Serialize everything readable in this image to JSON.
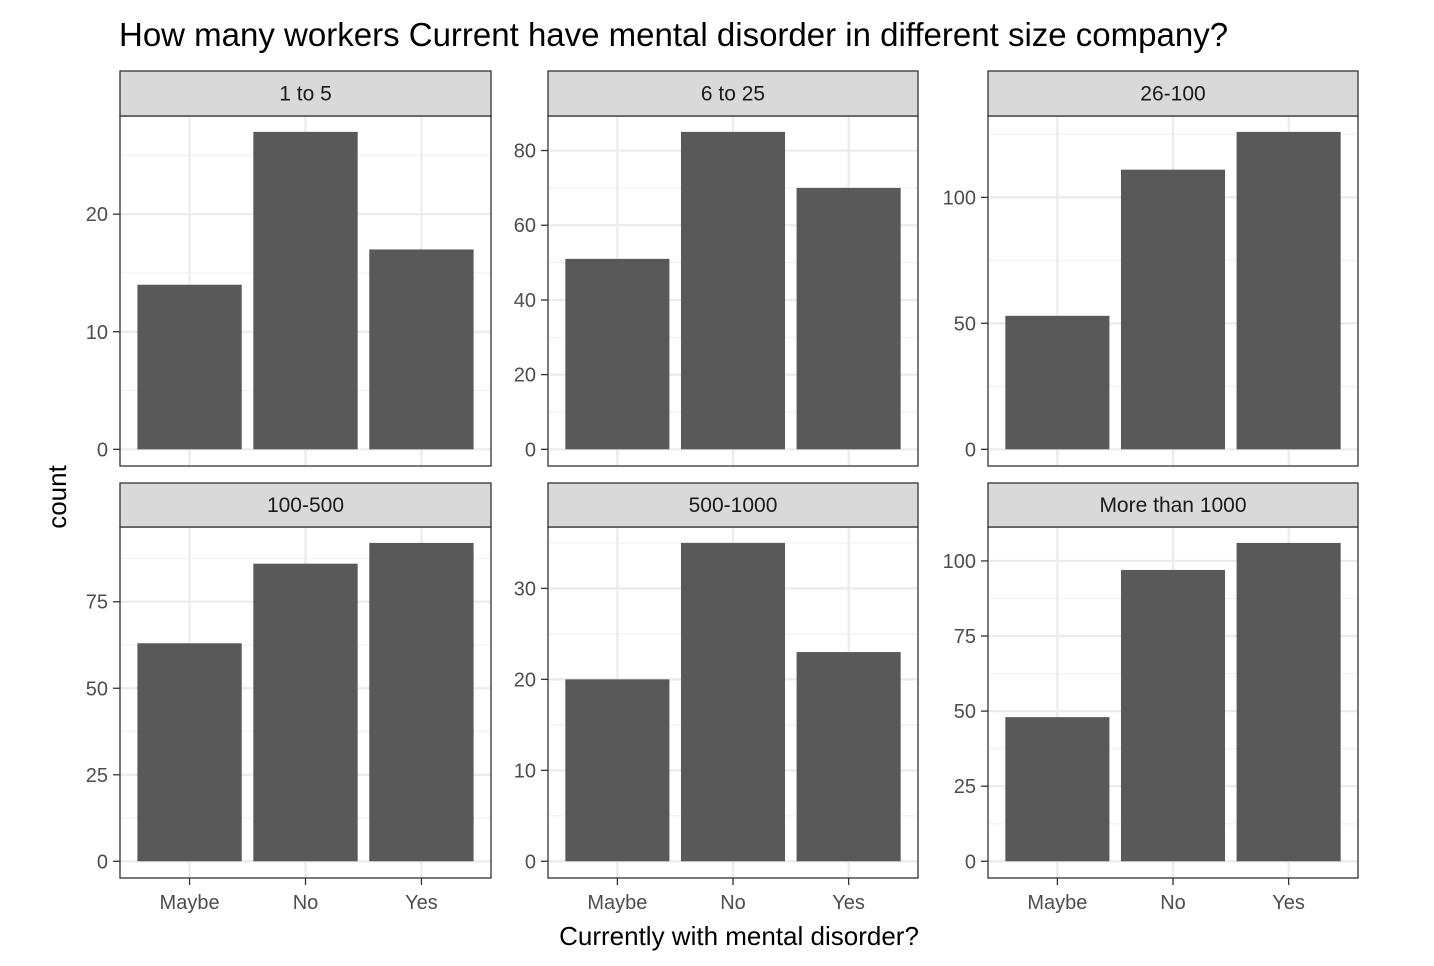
{
  "chart_data": {
    "type": "bar",
    "title": "How many workers Current have mental disorder in different size company?",
    "xlabel": "Currently with mental disorder?",
    "ylabel": "count",
    "categories": [
      "Maybe",
      "No",
      "Yes"
    ],
    "grid": true,
    "bar_color": "#595959",
    "strip_color": "#d9d9d9",
    "facets": [
      {
        "name": "1 to 5",
        "values": [
          14,
          27,
          17
        ],
        "ylim": [
          0,
          28.35
        ],
        "ticks": [
          0,
          10,
          20
        ]
      },
      {
        "name": "6 to 25",
        "values": [
          51,
          85,
          70
        ],
        "ylim": [
          0,
          89.25
        ],
        "ticks": [
          0,
          20,
          40,
          60,
          80
        ]
      },
      {
        "name": "26-100",
        "values": [
          53,
          111,
          126
        ],
        "ylim": [
          0,
          132.3
        ],
        "ticks": [
          0,
          50,
          100
        ]
      },
      {
        "name": "100-500",
        "values": [
          63,
          86,
          92
        ],
        "ylim": [
          0,
          96.6
        ],
        "ticks": [
          0,
          25,
          50,
          75
        ]
      },
      {
        "name": "500-1000",
        "values": [
          20,
          35,
          23
        ],
        "ylim": [
          0,
          36.75
        ],
        "ticks": [
          0,
          10,
          20,
          30
        ]
      },
      {
        "name": "More than 1000",
        "values": [
          48,
          97,
          106
        ],
        "ylim": [
          0,
          111.3
        ],
        "ticks": [
          0,
          25,
          50,
          75,
          100
        ]
      }
    ]
  }
}
